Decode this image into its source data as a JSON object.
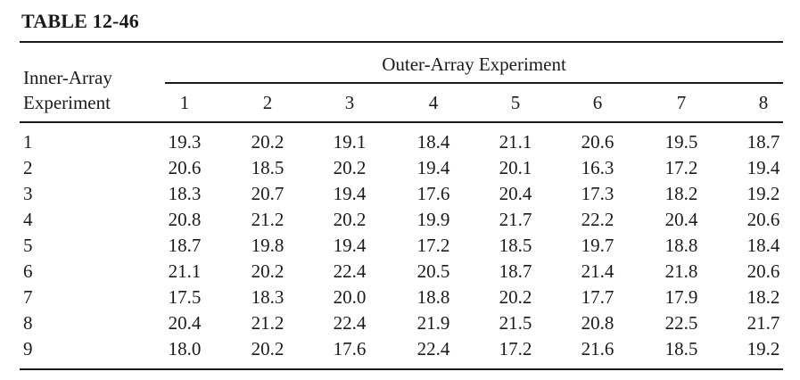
{
  "title": "TABLE 12-46",
  "stub_header": [
    "Inner-Array",
    "Experiment"
  ],
  "spanner_header": "Outer-Array Experiment",
  "columns": [
    "1",
    "2",
    "3",
    "4",
    "5",
    "6",
    "7",
    "8"
  ],
  "rows": [
    {
      "label": "1",
      "values": [
        "19.3",
        "20.2",
        "19.1",
        "18.4",
        "21.1",
        "20.6",
        "19.5",
        "18.7"
      ]
    },
    {
      "label": "2",
      "values": [
        "20.6",
        "18.5",
        "20.2",
        "19.4",
        "20.1",
        "16.3",
        "17.2",
        "19.4"
      ]
    },
    {
      "label": "3",
      "values": [
        "18.3",
        "20.7",
        "19.4",
        "17.6",
        "20.4",
        "17.3",
        "18.2",
        "19.2"
      ]
    },
    {
      "label": "4",
      "values": [
        "20.8",
        "21.2",
        "20.2",
        "19.9",
        "21.7",
        "22.2",
        "20.4",
        "20.6"
      ]
    },
    {
      "label": "5",
      "values": [
        "18.7",
        "19.8",
        "19.4",
        "17.2",
        "18.5",
        "19.7",
        "18.8",
        "18.4"
      ]
    },
    {
      "label": "6",
      "values": [
        "21.1",
        "20.2",
        "22.4",
        "20.5",
        "18.7",
        "21.4",
        "21.8",
        "20.6"
      ]
    },
    {
      "label": "7",
      "values": [
        "17.5",
        "18.3",
        "20.0",
        "18.8",
        "20.2",
        "17.7",
        "17.9",
        "18.2"
      ]
    },
    {
      "label": "8",
      "values": [
        "20.4",
        "21.2",
        "22.4",
        "21.9",
        "21.5",
        "20.8",
        "22.5",
        "21.7"
      ]
    },
    {
      "label": "9",
      "values": [
        "18.0",
        "20.2",
        "17.6",
        "22.4",
        "17.2",
        "21.6",
        "18.5",
        "19.2"
      ]
    }
  ]
}
